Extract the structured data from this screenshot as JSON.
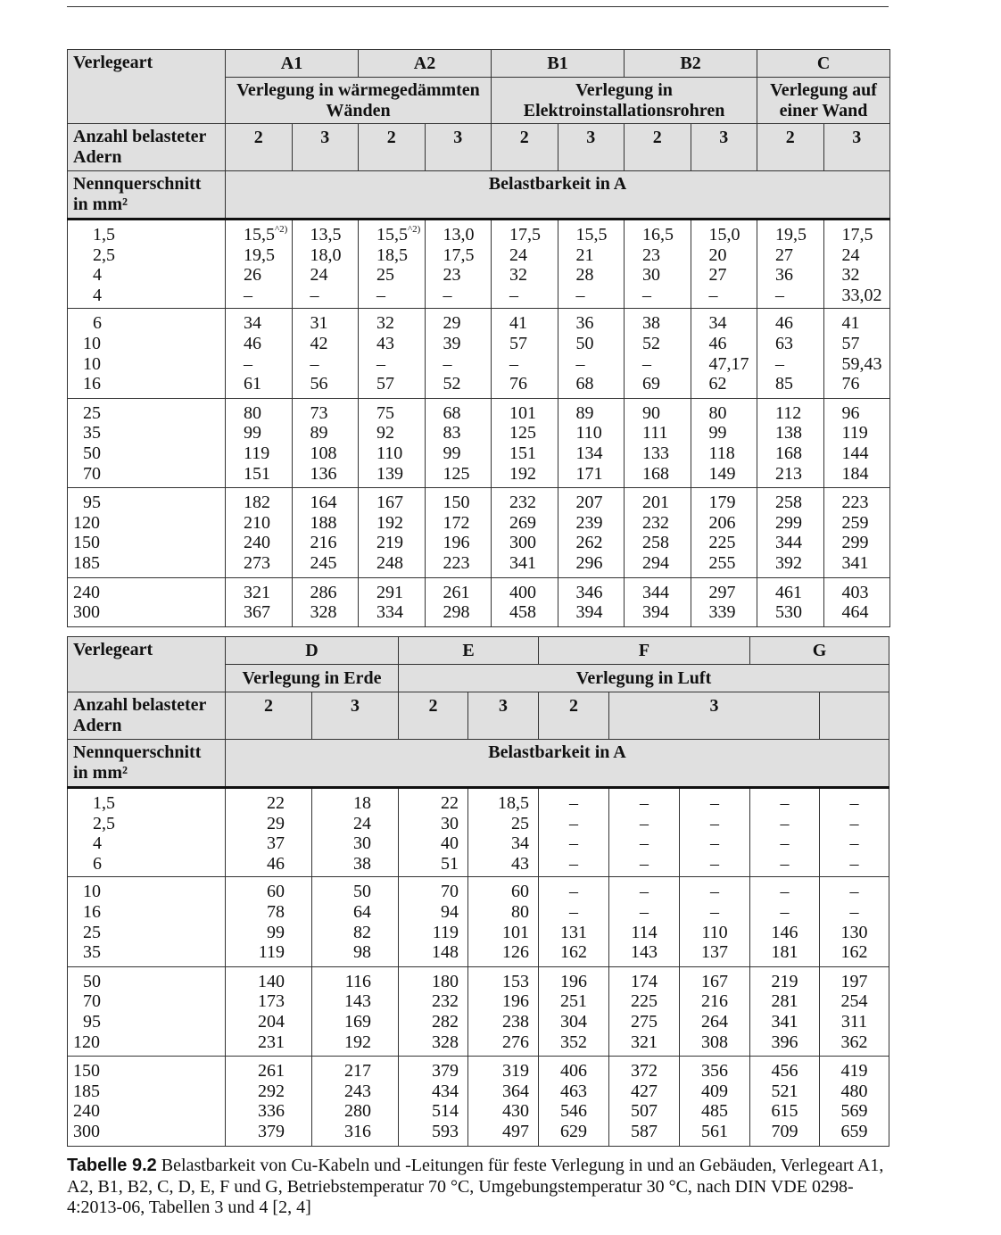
{
  "table1": {
    "header": {
      "verlegeart": "Verlegeart",
      "types": [
        "A1",
        "A2",
        "B1",
        "B2",
        "C"
      ],
      "descriptions": [
        "Verlegung in wärmegedämmten Wänden",
        "Verlegung in Elektroinstallationsrohren",
        "Verlegung auf einer Wand"
      ],
      "anzahl": "Anzahl belasteter Adern",
      "adern": [
        "2",
        "3",
        "2",
        "3",
        "2",
        "3",
        "2",
        "3",
        "2",
        "3"
      ],
      "nennquerschnitt": "Nennquerschnitt in mm²",
      "belastbarkeit": "Belastbarkeit in A"
    },
    "groups": [
      [
        [
          "1,5",
          "15,5^2)",
          "13,5",
          "15,5^2)",
          "13,0",
          "17,5",
          "15,5",
          "16,5",
          "15,0",
          "19,5",
          "17,5"
        ],
        [
          "2,5",
          "19,5",
          "18,0",
          "18,5",
          "17,5",
          "24",
          "21",
          "23",
          "20",
          "27",
          "24"
        ],
        [
          "4",
          "26",
          "24",
          "25",
          "23",
          "32",
          "28",
          "30",
          "27",
          "36",
          "32"
        ],
        [
          "4",
          "–",
          "–",
          "–",
          "–",
          "–",
          "–",
          "–",
          "–",
          "–",
          "33,02"
        ]
      ],
      [
        [
          "6",
          "34",
          "31",
          "32",
          "29",
          "41",
          "36",
          "38",
          "34",
          "46",
          "41"
        ],
        [
          "10",
          "46",
          "42",
          "43",
          "39",
          "57",
          "50",
          "52",
          "46",
          "63",
          "57"
        ],
        [
          "10",
          "–",
          "–",
          "–",
          "–",
          "–",
          "–",
          "–",
          "47,17",
          "–",
          "59,43"
        ],
        [
          "16",
          "61",
          "56",
          "57",
          "52",
          "76",
          "68",
          "69",
          "62",
          "85",
          "76"
        ]
      ],
      [
        [
          "25",
          "80",
          "73",
          "75",
          "68",
          "101",
          "89",
          "90",
          "80",
          "112",
          "96"
        ],
        [
          "35",
          "99",
          "89",
          "92",
          "83",
          "125",
          "110",
          "111",
          "99",
          "138",
          "119"
        ],
        [
          "50",
          "119",
          "108",
          "110",
          "99",
          "151",
          "134",
          "133",
          "118",
          "168",
          "144"
        ],
        [
          "70",
          "151",
          "136",
          "139",
          "125",
          "192",
          "171",
          "168",
          "149",
          "213",
          "184"
        ]
      ],
      [
        [
          "95",
          "182",
          "164",
          "167",
          "150",
          "232",
          "207",
          "201",
          "179",
          "258",
          "223"
        ],
        [
          "120",
          "210",
          "188",
          "192",
          "172",
          "269",
          "239",
          "232",
          "206",
          "299",
          "259"
        ],
        [
          "150",
          "240",
          "216",
          "219",
          "196",
          "300",
          "262",
          "258",
          "225",
          "344",
          "299"
        ],
        [
          "185",
          "273",
          "245",
          "248",
          "223",
          "341",
          "296",
          "294",
          "255",
          "392",
          "341"
        ]
      ],
      [
        [
          "240",
          "321",
          "286",
          "291",
          "261",
          "400",
          "346",
          "344",
          "297",
          "461",
          "403"
        ],
        [
          "300",
          "367",
          "328",
          "334",
          "298",
          "458",
          "394",
          "394",
          "339",
          "530",
          "464"
        ]
      ]
    ]
  },
  "table2": {
    "header": {
      "verlegeart": "Verlegeart",
      "types": [
        "D",
        "E",
        "F",
        "G"
      ],
      "descriptions": [
        "Verlegung in Erde",
        "Verlegung in Luft"
      ],
      "anzahl": "Anzahl belasteter Adern",
      "adern": [
        "2",
        "3",
        "2",
        "3",
        "2",
        "3",
        ""
      ],
      "nennquerschnitt": "Nennquerschnitt in mm²",
      "belastbarkeit": "Belastbarkeit in A"
    },
    "groups": [
      [
        [
          "1,5",
          "22",
          "18",
          "22",
          "18,5",
          "–",
          "–",
          "–",
          "–",
          "–"
        ],
        [
          "2,5",
          "29",
          "24",
          "30",
          "25",
          "–",
          "–",
          "–",
          "–",
          "–"
        ],
        [
          "4",
          "37",
          "30",
          "40",
          "34",
          "–",
          "–",
          "–",
          "–",
          "–"
        ],
        [
          "6",
          "46",
          "38",
          "51",
          "43",
          "–",
          "–",
          "–",
          "–",
          "–"
        ]
      ],
      [
        [
          "10",
          "60",
          "50",
          "70",
          "60",
          "–",
          "–",
          "–",
          "–",
          "–"
        ],
        [
          "16",
          "78",
          "64",
          "94",
          "80",
          "–",
          "–",
          "–",
          "–",
          "–"
        ],
        [
          "25",
          "99",
          "82",
          "119",
          "101",
          "131",
          "114",
          "110",
          "146",
          "130"
        ],
        [
          "35",
          "119",
          "98",
          "148",
          "126",
          "162",
          "143",
          "137",
          "181",
          "162"
        ]
      ],
      [
        [
          "50",
          "140",
          "116",
          "180",
          "153",
          "196",
          "174",
          "167",
          "219",
          "197"
        ],
        [
          "70",
          "173",
          "143",
          "232",
          "196",
          "251",
          "225",
          "216",
          "281",
          "254"
        ],
        [
          "95",
          "204",
          "169",
          "282",
          "238",
          "304",
          "275",
          "264",
          "341",
          "311"
        ],
        [
          "120",
          "231",
          "192",
          "328",
          "276",
          "352",
          "321",
          "308",
          "396",
          "362"
        ]
      ],
      [
        [
          "150",
          "261",
          "217",
          "379",
          "319",
          "406",
          "372",
          "356",
          "456",
          "419"
        ],
        [
          "185",
          "292",
          "243",
          "434",
          "364",
          "463",
          "427",
          "409",
          "521",
          "480"
        ],
        [
          "240",
          "336",
          "280",
          "514",
          "430",
          "546",
          "507",
          "485",
          "615",
          "569"
        ],
        [
          "300",
          "379",
          "316",
          "593",
          "497",
          "629",
          "587",
          "561",
          "709",
          "659"
        ]
      ]
    ]
  },
  "caption": {
    "label": "Tabelle 9.2",
    "text": "Belastbarkeit von Cu-Kabeln und -Leitungen für feste Verlegung in und an Gebäuden, Verlegeart A1, A2, B1, B2, C, D, E, F und G, Betriebstemperatur 70 °C, Umgebungstemperatur 30 °C, nach DIN VDE 0298-4:2013-06, Tabellen 3 und 4 [2, 4]"
  }
}
